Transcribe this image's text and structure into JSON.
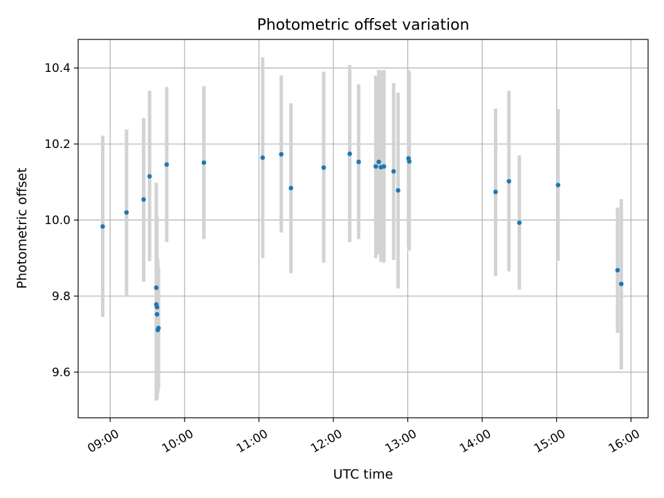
{
  "chart_data": {
    "type": "scatter",
    "title": "Photometric offset variation",
    "xlabel": "UTC time",
    "ylabel": "Photometric offset",
    "x_unit": "UTC hours",
    "xlim": [
      8.57,
      16.23
    ],
    "ylim": [
      9.48,
      10.475
    ],
    "xticks": [
      {
        "value": 9,
        "label": "09:00"
      },
      {
        "value": 10,
        "label": "10:00"
      },
      {
        "value": 11,
        "label": "11:00"
      },
      {
        "value": 12,
        "label": "12:00"
      },
      {
        "value": 13,
        "label": "13:00"
      },
      {
        "value": 14,
        "label": "14:00"
      },
      {
        "value": 15,
        "label": "15:00"
      },
      {
        "value": 16,
        "label": "16:00"
      }
    ],
    "yticks": [
      {
        "value": 9.6,
        "label": "9.6"
      },
      {
        "value": 9.8,
        "label": "9.8"
      },
      {
        "value": 10.0,
        "label": "10.0"
      },
      {
        "value": 10.2,
        "label": "10.2"
      },
      {
        "value": 10.4,
        "label": "10.4"
      }
    ],
    "grid": true,
    "colors": {
      "point": "#1f77b4",
      "errorbar": "#d3d3d3",
      "grid": "#b0b0b0"
    },
    "series": [
      {
        "points": [
          {
            "x": 8.9,
            "y": 9.983,
            "ylo": 9.745,
            "yhi": 10.222
          },
          {
            "x": 9.22,
            "y": 10.02,
            "ylo": 9.8,
            "yhi": 10.238
          },
          {
            "x": 9.45,
            "y": 10.054,
            "ylo": 9.838,
            "yhi": 10.268
          },
          {
            "x": 9.53,
            "y": 10.115,
            "ylo": 9.892,
            "yhi": 10.34
          },
          {
            "x": 9.62,
            "y": 9.822,
            "ylo": 9.545,
            "yhi": 10.098
          },
          {
            "x": 9.62,
            "y": 9.778,
            "ylo": 9.525,
            "yhi": 10.02
          },
          {
            "x": 9.63,
            "y": 9.771,
            "ylo": 9.528,
            "yhi": 10.01
          },
          {
            "x": 9.63,
            "y": 9.752,
            "ylo": 9.53,
            "yhi": 9.975
          },
          {
            "x": 9.64,
            "y": 9.711,
            "ylo": 9.545,
            "yhi": 9.897
          },
          {
            "x": 9.65,
            "y": 9.716,
            "ylo": 9.555,
            "yhi": 9.875
          },
          {
            "x": 9.76,
            "y": 10.146,
            "ylo": 9.942,
            "yhi": 10.35
          },
          {
            "x": 10.26,
            "y": 10.151,
            "ylo": 9.95,
            "yhi": 10.352
          },
          {
            "x": 11.05,
            "y": 10.164,
            "ylo": 9.9,
            "yhi": 10.428
          },
          {
            "x": 11.3,
            "y": 10.173,
            "ylo": 9.967,
            "yhi": 10.38
          },
          {
            "x": 11.43,
            "y": 10.084,
            "ylo": 9.86,
            "yhi": 10.307
          },
          {
            "x": 11.87,
            "y": 10.138,
            "ylo": 9.888,
            "yhi": 10.39
          },
          {
            "x": 12.22,
            "y": 10.174,
            "ylo": 9.942,
            "yhi": 10.408
          },
          {
            "x": 12.34,
            "y": 10.153,
            "ylo": 9.95,
            "yhi": 10.357
          },
          {
            "x": 12.57,
            "y": 10.141,
            "ylo": 9.9,
            "yhi": 10.38
          },
          {
            "x": 12.61,
            "y": 10.153,
            "ylo": 9.91,
            "yhi": 10.395
          },
          {
            "x": 12.64,
            "y": 10.139,
            "ylo": 9.89,
            "yhi": 10.393
          },
          {
            "x": 12.68,
            "y": 10.141,
            "ylo": 9.888,
            "yhi": 10.395
          },
          {
            "x": 12.81,
            "y": 10.128,
            "ylo": 9.895,
            "yhi": 10.36
          },
          {
            "x": 12.87,
            "y": 10.078,
            "ylo": 9.82,
            "yhi": 10.335
          },
          {
            "x": 13.01,
            "y": 10.162,
            "ylo": 9.93,
            "yhi": 10.395
          },
          {
            "x": 13.02,
            "y": 10.154,
            "ylo": 9.92,
            "yhi": 10.388
          },
          {
            "x": 14.18,
            "y": 10.074,
            "ylo": 9.853,
            "yhi": 10.293
          },
          {
            "x": 14.36,
            "y": 10.102,
            "ylo": 9.865,
            "yhi": 10.34
          },
          {
            "x": 14.5,
            "y": 9.993,
            "ylo": 9.817,
            "yhi": 10.17
          },
          {
            "x": 15.02,
            "y": 10.092,
            "ylo": 9.893,
            "yhi": 10.292
          },
          {
            "x": 15.82,
            "y": 9.868,
            "ylo": 9.703,
            "yhi": 10.033
          },
          {
            "x": 15.87,
            "y": 9.832,
            "ylo": 9.607,
            "yhi": 10.055
          }
        ]
      }
    ]
  }
}
